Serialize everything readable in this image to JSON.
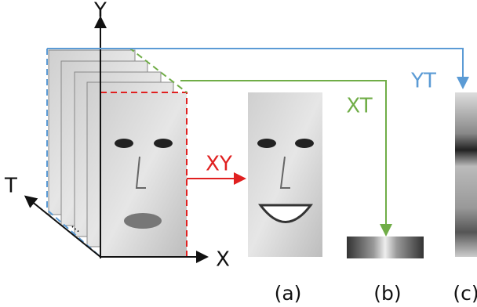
{
  "axes": {
    "y": "Y",
    "x": "X",
    "t": "T",
    "ellipsis": "..."
  },
  "planes": {
    "xy": "XY",
    "xt": "XT",
    "yt": "YT"
  },
  "panels": [
    "(a)",
    "(b)",
    "(c)"
  ]
}
